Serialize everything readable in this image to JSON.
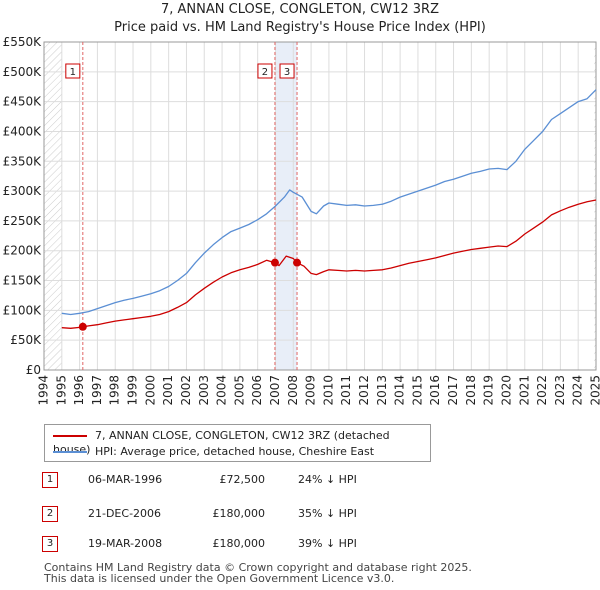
{
  "title_line1": "7, ANNAN CLOSE, CONGLETON, CW12 3RZ",
  "title_line2": "Price paid vs. HM Land Registry's House Price Index (HPI)",
  "colors": {
    "property": "#cc0000",
    "hpi": "#5b8fd4",
    "grid": "#dddddd",
    "shade": "#e8eef8",
    "marker_line": "#e06666"
  },
  "legend": {
    "property_label": "7, ANNAN CLOSE, CONGLETON, CW12 3RZ (detached house)",
    "hpi_label": "HPI: Average price, detached house, Cheshire East"
  },
  "sales": [
    {
      "num": "1",
      "date": "06-MAR-1996",
      "price": "£72,500",
      "hpi_change": "24% ↓ HPI"
    },
    {
      "num": "2",
      "date": "21-DEC-2006",
      "price": "£180,000",
      "hpi_change": "35% ↓ HPI"
    },
    {
      "num": "3",
      "date": "19-MAR-2008",
      "price": "£180,000",
      "hpi_change": "39% ↓ HPI"
    }
  ],
  "footer_line1": "Contains HM Land Registry data © Crown copyright and database right 2025.",
  "footer_line2": "This data is licensed under the Open Government Licence v3.0.",
  "chart_data": {
    "type": "line",
    "title": "Price paid vs. HM Land Registry's House Price Index (HPI)",
    "xlabel": "",
    "ylabel": "",
    "xlim": [
      1994,
      2025
    ],
    "ylim": [
      0,
      550000
    ],
    "y_ticks": [
      0,
      50000,
      100000,
      150000,
      200000,
      250000,
      300000,
      350000,
      400000,
      450000,
      500000,
      550000
    ],
    "y_tick_labels": [
      "£0",
      "£50K",
      "£100K",
      "£150K",
      "£200K",
      "£250K",
      "£300K",
      "£350K",
      "£400K",
      "£450K",
      "£500K",
      "£550K"
    ],
    "x_ticks": [
      1994,
      1995,
      1996,
      1997,
      1998,
      1999,
      2000,
      2001,
      2002,
      2003,
      2004,
      2005,
      2006,
      2007,
      2008,
      2009,
      2010,
      2011,
      2012,
      2013,
      2014,
      2015,
      2016,
      2017,
      2018,
      2019,
      2020,
      2021,
      2022,
      2023,
      2024,
      2025
    ],
    "x_tick_labels": [
      "1994",
      "1995",
      "1996",
      "1997",
      "1998",
      "1999",
      "2000",
      "2001",
      "2002",
      "2003",
      "2004",
      "2005",
      "2006",
      "2007",
      "2008",
      "2009",
      "2010",
      "2011",
      "2012",
      "2013",
      "2014",
      "2015",
      "2016",
      "2017",
      "2018",
      "2019",
      "2020",
      "2021",
      "2022",
      "2023",
      "2024",
      "2025"
    ],
    "grid": true,
    "series": [
      {
        "name": "HPI: Average price, detached house, Cheshire East",
        "x": [
          1995.0,
          1995.5,
          1996.0,
          1996.5,
          1997.0,
          1997.5,
          1998.0,
          1998.5,
          1999.0,
          1999.5,
          2000.0,
          2000.5,
          2001.0,
          2001.5,
          2002.0,
          2002.5,
          2003.0,
          2003.5,
          2004.0,
          2004.5,
          2005.0,
          2005.5,
          2006.0,
          2006.5,
          2007.0,
          2007.5,
          2007.8,
          2008.0,
          2008.5,
          2009.0,
          2009.3,
          2009.7,
          2010.0,
          2010.5,
          2011.0,
          2011.5,
          2012.0,
          2012.5,
          2013.0,
          2013.5,
          2014.0,
          2014.5,
          2015.0,
          2015.5,
          2016.0,
          2016.5,
          2017.0,
          2017.5,
          2018.0,
          2018.5,
          2019.0,
          2019.5,
          2020.0,
          2020.5,
          2021.0,
          2021.5,
          2022.0,
          2022.5,
          2023.0,
          2023.5,
          2024.0,
          2024.5,
          2025.0
        ],
        "values": [
          95000,
          93000,
          95000,
          98000,
          103000,
          108000,
          113000,
          117000,
          120000,
          124000,
          128000,
          133000,
          140000,
          150000,
          162000,
          180000,
          196000,
          210000,
          222000,
          232000,
          238000,
          244000,
          252000,
          262000,
          275000,
          290000,
          302000,
          298000,
          290000,
          266000,
          262000,
          275000,
          280000,
          278000,
          276000,
          277000,
          275000,
          276000,
          278000,
          283000,
          290000,
          295000,
          300000,
          305000,
          310000,
          316000,
          320000,
          325000,
          330000,
          333000,
          337000,
          338000,
          336000,
          350000,
          370000,
          385000,
          400000,
          420000,
          430000,
          440000,
          450000,
          455000,
          470000
        ]
      },
      {
        "name": "7, ANNAN CLOSE, CONGLETON, CW12 3RZ (detached house)",
        "x": [
          1995.0,
          1995.5,
          1996.0,
          1996.18,
          1996.5,
          1997.0,
          1997.5,
          1998.0,
          1998.5,
          1999.0,
          1999.5,
          2000.0,
          2000.5,
          2001.0,
          2001.5,
          2002.0,
          2002.5,
          2003.0,
          2003.5,
          2004.0,
          2004.5,
          2005.0,
          2005.5,
          2006.0,
          2006.5,
          2006.97,
          2007.2,
          2007.6,
          2008.0,
          2008.21,
          2008.6,
          2009.0,
          2009.3,
          2009.7,
          2010.0,
          2010.5,
          2011.0,
          2011.5,
          2012.0,
          2012.5,
          2013.0,
          2013.5,
          2014.0,
          2014.5,
          2015.0,
          2015.5,
          2016.0,
          2016.5,
          2017.0,
          2017.5,
          2018.0,
          2018.5,
          2019.0,
          2019.5,
          2020.0,
          2020.5,
          2021.0,
          2021.5,
          2022.0,
          2022.5,
          2023.0,
          2023.5,
          2024.0,
          2024.5,
          2025.0
        ],
        "values": [
          71000,
          70000,
          71500,
          72500,
          74000,
          76000,
          79000,
          82000,
          84000,
          86000,
          88000,
          90000,
          93000,
          98000,
          105000,
          113000,
          126000,
          137000,
          147000,
          156000,
          163000,
          168000,
          172000,
          177000,
          184000,
          180000,
          175000,
          191000,
          187000,
          180000,
          174000,
          162000,
          160000,
          165000,
          168000,
          167000,
          166000,
          167000,
          166000,
          167000,
          168000,
          171000,
          175000,
          179000,
          182000,
          185000,
          188000,
          192000,
          196000,
          199000,
          202000,
          204000,
          206000,
          208000,
          207000,
          216000,
          228000,
          238000,
          248000,
          260000,
          267000,
          273000,
          278000,
          282000,
          285000
        ]
      }
    ],
    "sales_points": [
      {
        "label": "1",
        "x": 1996.18,
        "value": 72500
      },
      {
        "label": "2",
        "x": 2006.97,
        "value": 180000
      },
      {
        "label": "3",
        "x": 2008.21,
        "value": 180000
      }
    ],
    "hatched_region_before": 1995.0,
    "hatched_region_after": 2024.9,
    "shaded_band": [
      2006.97,
      2008.21
    ]
  }
}
